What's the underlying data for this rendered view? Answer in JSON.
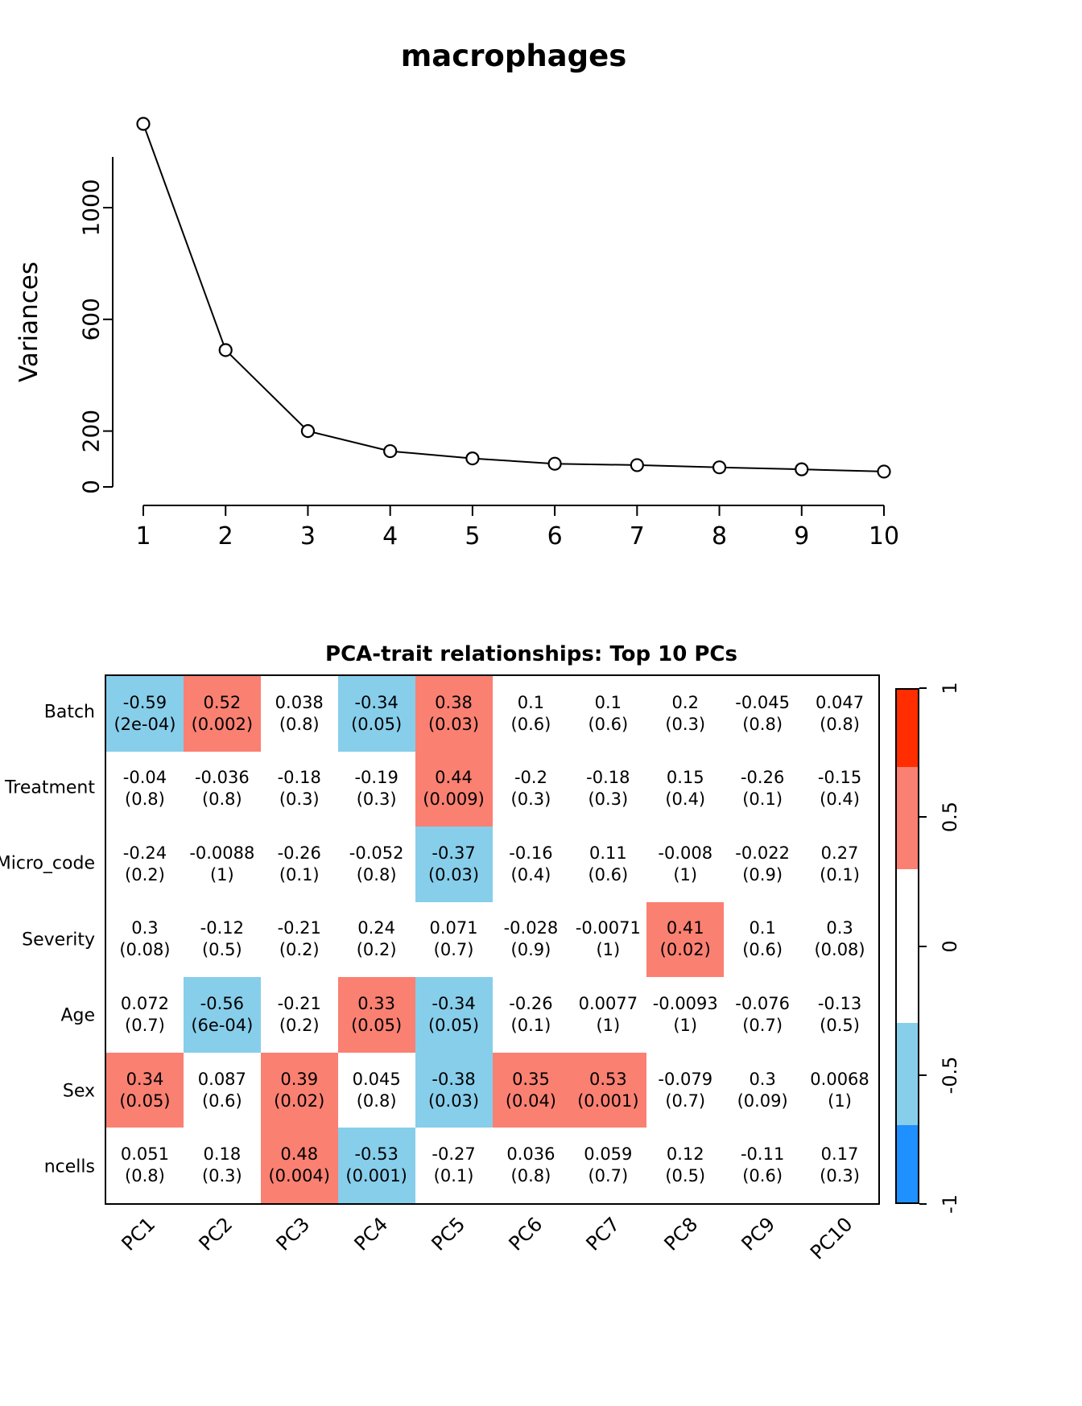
{
  "chart_data": [
    {
      "type": "line",
      "title": "macrophages",
      "xlabel": "",
      "ylabel": "Variances",
      "x": [
        1,
        2,
        3,
        4,
        5,
        6,
        7,
        8,
        9,
        10
      ],
      "values": [
        1300,
        490,
        200,
        128,
        102,
        83,
        78,
        70,
        63,
        55
      ],
      "yticks": [
        0,
        200,
        600,
        1000
      ],
      "ylim": [
        0,
        1350
      ],
      "marker": "open-circle",
      "grid": false
    },
    {
      "type": "heatmap",
      "title": "PCA-trait relationships: Top 10 PCs",
      "columns": [
        "PC1",
        "PC2",
        "PC3",
        "PC4",
        "PC5",
        "PC6",
        "PC7",
        "PC8",
        "PC9",
        "PC10"
      ],
      "rows": [
        {
          "label": "Batch",
          "cells": [
            {
              "r": -0.59,
              "p": "2e-04"
            },
            {
              "r": 0.52,
              "p": "0.002"
            },
            {
              "r": 0.038,
              "p": "0.8"
            },
            {
              "r": -0.34,
              "p": "0.05"
            },
            {
              "r": 0.38,
              "p": "0.03"
            },
            {
              "r": 0.1,
              "p": "0.6"
            },
            {
              "r": 0.1,
              "p": "0.6"
            },
            {
              "r": 0.2,
              "p": "0.3"
            },
            {
              "r": -0.045,
              "p": "0.8"
            },
            {
              "r": 0.047,
              "p": "0.8"
            }
          ]
        },
        {
          "label": "Treatment",
          "cells": [
            {
              "r": -0.04,
              "p": "0.8"
            },
            {
              "r": -0.036,
              "p": "0.8"
            },
            {
              "r": -0.18,
              "p": "0.3"
            },
            {
              "r": -0.19,
              "p": "0.3"
            },
            {
              "r": 0.44,
              "p": "0.009"
            },
            {
              "r": -0.2,
              "p": "0.3"
            },
            {
              "r": -0.18,
              "p": "0.3"
            },
            {
              "r": 0.15,
              "p": "0.4"
            },
            {
              "r": -0.26,
              "p": "0.1"
            },
            {
              "r": -0.15,
              "p": "0.4"
            }
          ]
        },
        {
          "label": "Micro_code",
          "cells": [
            {
              "r": -0.24,
              "p": "0.2"
            },
            {
              "r": -0.0088,
              "p": "1"
            },
            {
              "r": -0.26,
              "p": "0.1"
            },
            {
              "r": -0.052,
              "p": "0.8"
            },
            {
              "r": -0.37,
              "p": "0.03"
            },
            {
              "r": -0.16,
              "p": "0.4"
            },
            {
              "r": 0.11,
              "p": "0.6"
            },
            {
              "r": -0.008,
              "p": "1"
            },
            {
              "r": -0.022,
              "p": "0.9"
            },
            {
              "r": 0.27,
              "p": "0.1"
            }
          ]
        },
        {
          "label": "Severity",
          "cells": [
            {
              "r": 0.3,
              "p": "0.08"
            },
            {
              "r": -0.12,
              "p": "0.5"
            },
            {
              "r": -0.21,
              "p": "0.2"
            },
            {
              "r": 0.24,
              "p": "0.2"
            },
            {
              "r": 0.071,
              "p": "0.7"
            },
            {
              "r": -0.028,
              "p": "0.9"
            },
            {
              "r": -0.0071,
              "p": "1"
            },
            {
              "r": 0.41,
              "p": "0.02"
            },
            {
              "r": 0.1,
              "p": "0.6"
            },
            {
              "r": 0.3,
              "p": "0.08"
            }
          ]
        },
        {
          "label": "Age",
          "cells": [
            {
              "r": 0.072,
              "p": "0.7"
            },
            {
              "r": -0.56,
              "p": "6e-04"
            },
            {
              "r": -0.21,
              "p": "0.2"
            },
            {
              "r": 0.33,
              "p": "0.05"
            },
            {
              "r": -0.34,
              "p": "0.05"
            },
            {
              "r": -0.26,
              "p": "0.1"
            },
            {
              "r": 0.0077,
              "p": "1"
            },
            {
              "r": -0.0093,
              "p": "1"
            },
            {
              "r": -0.076,
              "p": "0.7"
            },
            {
              "r": -0.13,
              "p": "0.5"
            }
          ]
        },
        {
          "label": "Sex",
          "cells": [
            {
              "r": 0.34,
              "p": "0.05"
            },
            {
              "r": 0.087,
              "p": "0.6"
            },
            {
              "r": 0.39,
              "p": "0.02"
            },
            {
              "r": 0.045,
              "p": "0.8"
            },
            {
              "r": -0.38,
              "p": "0.03"
            },
            {
              "r": 0.35,
              "p": "0.04"
            },
            {
              "r": 0.53,
              "p": "0.001"
            },
            {
              "r": -0.079,
              "p": "0.7"
            },
            {
              "r": 0.3,
              "p": "0.09"
            },
            {
              "r": 0.0068,
              "p": "1"
            }
          ]
        },
        {
          "label": "ncells",
          "cells": [
            {
              "r": 0.051,
              "p": "0.8"
            },
            {
              "r": 0.18,
              "p": "0.3"
            },
            {
              "r": 0.48,
              "p": "0.004"
            },
            {
              "r": -0.53,
              "p": "0.001"
            },
            {
              "r": -0.27,
              "p": "0.1"
            },
            {
              "r": 0.036,
              "p": "0.8"
            },
            {
              "r": 0.059,
              "p": "0.7"
            },
            {
              "r": 0.12,
              "p": "0.5"
            },
            {
              "r": -0.11,
              "p": "0.6"
            },
            {
              "r": 0.17,
              "p": "0.3"
            }
          ]
        }
      ],
      "legend": {
        "ticks": [
          "1",
          "0.5",
          "0",
          "-0.5",
          "-1"
        ],
        "breaks": [
          -1,
          -0.7,
          -0.3,
          0.3,
          0.7,
          1
        ],
        "colors": [
          "#1E90FF",
          "#87CEEB",
          "#FFFFFF",
          "#FA8072",
          "#FF2D00"
        ],
        "position": "right"
      }
    }
  ]
}
